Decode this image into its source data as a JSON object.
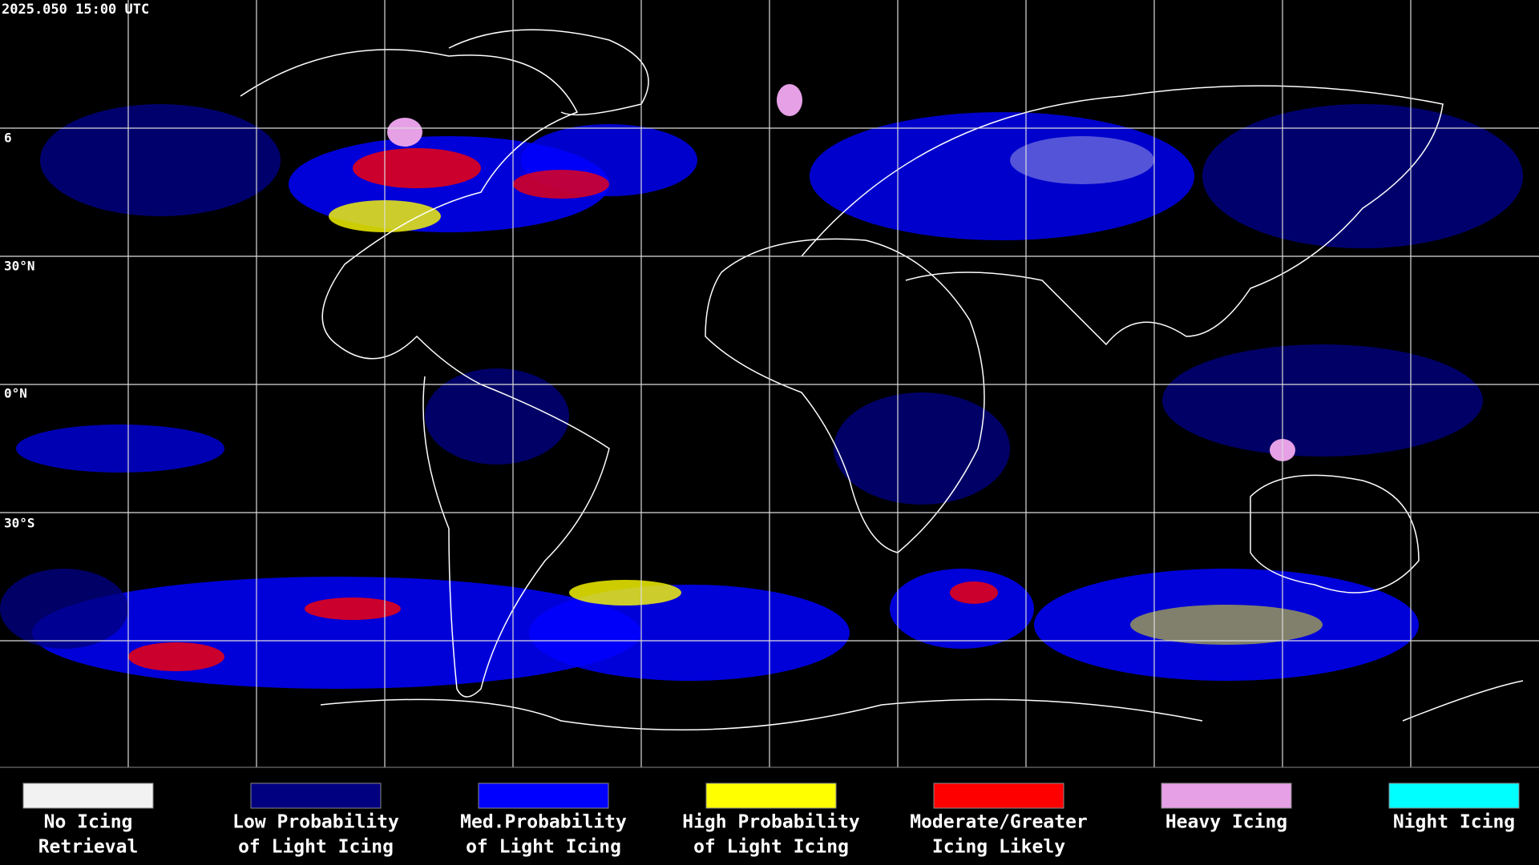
{
  "timestamp": "2025.050 15:00 UTC",
  "latitude_labels": [
    "6",
    "30°N",
    "0°N",
    "30°S"
  ],
  "legend": [
    {
      "lines": [
        "No Icing",
        "Retrieval"
      ],
      "color": "#f2f2f2"
    },
    {
      "lines": [
        "Low Probability",
        "of Light Icing"
      ],
      "color": "#000080"
    },
    {
      "lines": [
        "Med.Probability",
        "of Light Icing"
      ],
      "color": "#0000ff"
    },
    {
      "lines": [
        "High Probability",
        "of Light Icing"
      ],
      "color": "#ffff00"
    },
    {
      "lines": [
        "Moderate/Greater",
        "Icing Likely"
      ],
      "color": "#ff0000"
    },
    {
      "lines": [
        "Heavy Icing"
      ],
      "color": "#e6a0e6"
    },
    {
      "lines": [
        "Night Icing"
      ],
      "color": "#00ffff"
    }
  ]
}
